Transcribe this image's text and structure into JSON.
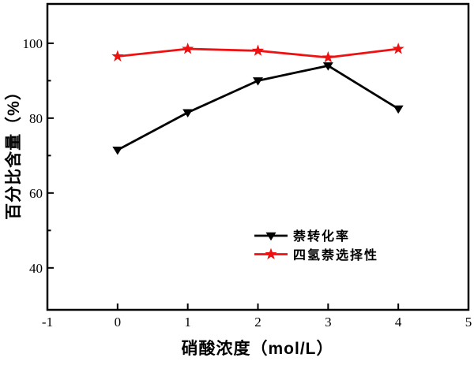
{
  "figure": {
    "background": "#ffffff",
    "frame_color": "#000000"
  },
  "chart_data": {
    "type": "line",
    "title": "",
    "xlabel": "硝酸浓度（mol/L）",
    "ylabel": "百分比含量（%）",
    "x": [
      0,
      1,
      2,
      3,
      4
    ],
    "series": [
      {
        "name": "萘转化率",
        "color": "#000000",
        "marker": "triangle-down",
        "values": [
          71.5,
          81.5,
          90,
          94,
          82.5
        ]
      },
      {
        "name": "四氢萘选择性",
        "color": "#ee1111",
        "marker": "star",
        "values": [
          96.5,
          98.5,
          98,
          96.2,
          98.5
        ]
      }
    ],
    "xlim": [
      -1,
      5
    ],
    "ylim": [
      28.8,
      110.5
    ],
    "xticks": [
      -1,
      0,
      1,
      2,
      3,
      4,
      5
    ],
    "xticks_marked": [
      0,
      1,
      2,
      3,
      4
    ],
    "yticks_major": [
      40,
      60,
      80,
      100
    ],
    "yticks_minor": [
      50,
      70,
      90
    ],
    "grid": false,
    "legend": {
      "position": "inside-right-lower-middle",
      "entries": [
        "萘转化率",
        "四氢萘选择性"
      ]
    }
  }
}
